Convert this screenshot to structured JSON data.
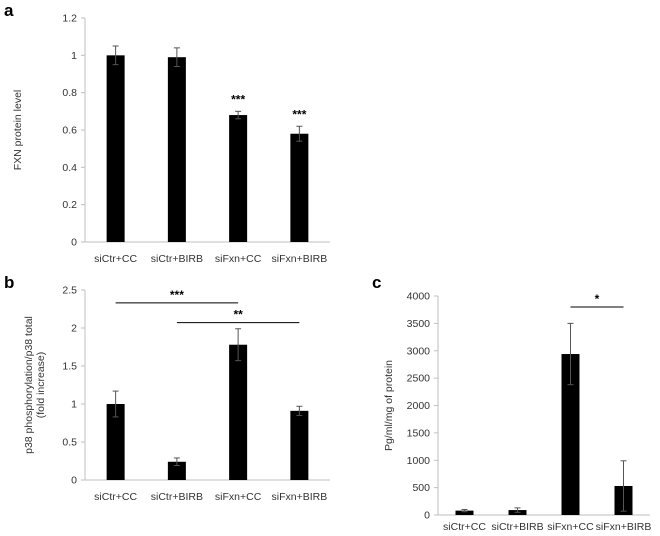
{
  "colors": {
    "bar": "#000000",
    "axis": "#bfbfbf",
    "error": "#555555"
  },
  "chart_data": [
    {
      "panel_label": "a",
      "type": "bar",
      "categories": [
        "siCtr+CC",
        "siCtr+BIRB",
        "siFxn+CC",
        "siFxn+BIRB"
      ],
      "values": [
        1.0,
        0.99,
        0.68,
        0.58
      ],
      "errors": [
        0.05,
        0.05,
        0.02,
        0.04
      ],
      "ylabel": "FXN protein level",
      "ylabel_lines": [
        "FXN protein level"
      ],
      "ylim": [
        0,
        1.2
      ],
      "yticks": [
        0,
        0.2,
        0.4,
        0.6,
        0.8,
        1,
        1.2
      ],
      "ytick_labels": [
        "0",
        "0.2",
        "0.4",
        "0.6",
        "0.8",
        "1",
        "1.2"
      ],
      "grid": false,
      "annotations": [
        {
          "text": "***",
          "category_index": 2
        },
        {
          "text": "***",
          "category_index": 3
        }
      ],
      "brackets": []
    },
    {
      "panel_label": "b",
      "type": "bar",
      "categories": [
        "siCtr+CC",
        "siCtr+BIRB",
        "siFxn+CC",
        "siFxn+BIRB"
      ],
      "values": [
        1.0,
        0.24,
        1.78,
        0.91
      ],
      "errors": [
        0.17,
        0.05,
        0.21,
        0.06
      ],
      "ylabel": "p38 phosphorylation/p38 total (fold increase)",
      "ylabel_lines": [
        "p38 phosphorylation/p38 total",
        "(fold increase)"
      ],
      "ylim": [
        0,
        2.5
      ],
      "yticks": [
        0,
        0.5,
        1,
        1.5,
        2,
        2.5
      ],
      "ytick_labels": [
        "0",
        "0.5",
        "1",
        "1.5",
        "2",
        "2.5"
      ],
      "grid": false,
      "annotations": [],
      "brackets": [
        {
          "text": "***",
          "from_index": 0,
          "to_index": 2,
          "y": 2.33
        },
        {
          "text": "**",
          "from_index": 1,
          "to_index": 3,
          "y": 2.07
        }
      ]
    },
    {
      "panel_label": "c",
      "type": "bar",
      "categories": [
        "siCtr+CC",
        "siCtr+BIRB",
        "siFxn+CC",
        "siFxn+BIRB"
      ],
      "values": [
        80,
        90,
        2940,
        530
      ],
      "errors": [
        20,
        40,
        560,
        460
      ],
      "ylabel": "Pg/ml/mg of protein",
      "ylabel_lines": [
        "Pg/ml/mg of protein"
      ],
      "ylim": [
        0,
        4000
      ],
      "yticks": [
        0,
        500,
        1000,
        1500,
        2000,
        2500,
        3000,
        3500,
        4000
      ],
      "ytick_labels": [
        "0",
        "500",
        "1000",
        "1500",
        "2000",
        "2500",
        "3000",
        "3500",
        "4000"
      ],
      "grid": false,
      "annotations": [],
      "brackets": [
        {
          "text": "*",
          "from_index": 2,
          "to_index": 3,
          "y": 3800
        }
      ]
    }
  ]
}
